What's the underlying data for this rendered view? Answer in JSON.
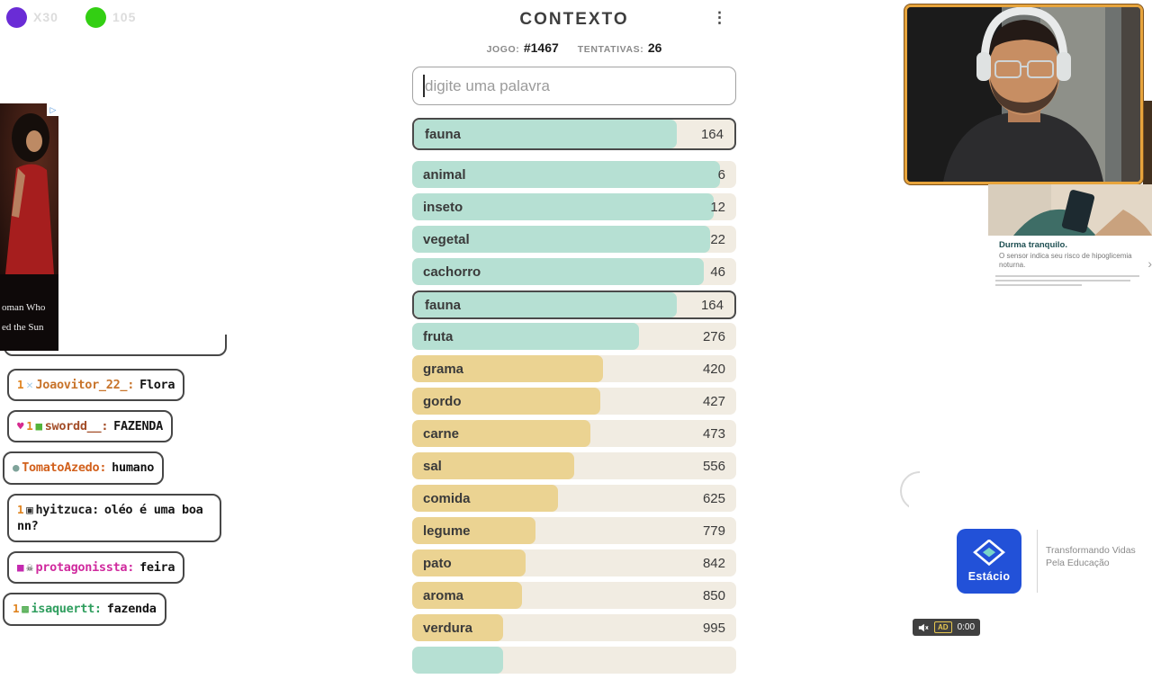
{
  "colors": {
    "teal_bar": "#b6e0d3",
    "yellow_bar": "#ebd392",
    "row_bg": "#f1ece2"
  },
  "stream_counters": [
    {
      "icon": "purple-circle",
      "value": "X30",
      "color": "#6a2cd6"
    },
    {
      "icon": "green-circle",
      "value": "105",
      "color": "#33cf13"
    }
  ],
  "game": {
    "title": "CONTEXTO",
    "menu_icon": "⋮",
    "jogo_label": "JOGO:",
    "jogo_value": "#1467",
    "tentativas_label": "TENTATIVAS:",
    "tentativas_value": "26",
    "input_placeholder": "digite uma palavra",
    "current_guess": {
      "word": "fauna",
      "rank": "164",
      "fill": 82,
      "tone": "teal",
      "pinned": true
    },
    "guesses": [
      {
        "word": "animal",
        "rank": "6",
        "fill": 95,
        "tone": "teal",
        "pinned": false
      },
      {
        "word": "inseto",
        "rank": "12",
        "fill": 93,
        "tone": "teal",
        "pinned": false
      },
      {
        "word": "vegetal",
        "rank": "22",
        "fill": 92,
        "tone": "teal",
        "pinned": false
      },
      {
        "word": "cachorro",
        "rank": "46",
        "fill": 90,
        "tone": "teal",
        "pinned": false
      },
      {
        "word": "fauna",
        "rank": "164",
        "fill": 82,
        "tone": "teal",
        "pinned": true
      },
      {
        "word": "fruta",
        "rank": "276",
        "fill": 70,
        "tone": "teal",
        "pinned": false
      },
      {
        "word": "grama",
        "rank": "420",
        "fill": 59,
        "tone": "yellow",
        "pinned": false
      },
      {
        "word": "gordo",
        "rank": "427",
        "fill": 58,
        "tone": "yellow",
        "pinned": false
      },
      {
        "word": "carne",
        "rank": "473",
        "fill": 55,
        "tone": "yellow",
        "pinned": false
      },
      {
        "word": "sal",
        "rank": "556",
        "fill": 50,
        "tone": "yellow",
        "pinned": false
      },
      {
        "word": "comida",
        "rank": "625",
        "fill": 45,
        "tone": "yellow",
        "pinned": false
      },
      {
        "word": "legume",
        "rank": "779",
        "fill": 38,
        "tone": "yellow",
        "pinned": false
      },
      {
        "word": "pato",
        "rank": "842",
        "fill": 35,
        "tone": "yellow",
        "pinned": false
      },
      {
        "word": "aroma",
        "rank": "850",
        "fill": 34,
        "tone": "yellow",
        "pinned": false
      },
      {
        "word": "verdura",
        "rank": "995",
        "fill": 28,
        "tone": "yellow",
        "pinned": false
      },
      {
        "word": "",
        "rank": "",
        "fill": 28,
        "tone": "teal",
        "pinned": false
      }
    ]
  },
  "chat": {
    "messages": [
      {
        "badges": [
          {
            "glyph": "1",
            "color": "#df831e"
          },
          {
            "glyph": "✕",
            "color": "#a5cce8"
          }
        ],
        "username": "Joaovitor_22_:",
        "name_color": "#c8742b",
        "text": "Flora",
        "shift": false
      },
      {
        "badges": [
          {
            "glyph": "♥",
            "color": "#d62a8f"
          },
          {
            "glyph": "1",
            "color": "#df831e"
          },
          {
            "glyph": "■",
            "color": "#53b43a"
          }
        ],
        "username": "swordd__:",
        "name_color": "#a34d28",
        "text": "FAZENDA",
        "shift": false
      },
      {
        "badges": [
          {
            "glyph": "●",
            "color": "#7fa39a"
          }
        ],
        "username": "TomatoAzedo:",
        "name_color": "#d2611d",
        "text": "humano",
        "shift": true
      },
      {
        "badges": [
          {
            "glyph": "1",
            "color": "#df831e"
          },
          {
            "glyph": "▣",
            "color": "#2b2b2b"
          }
        ],
        "username": "hyitzuca:",
        "name_color": "#1c1c1c",
        "text": "oléo é uma boa nn?",
        "shift": false
      },
      {
        "badges": [
          {
            "glyph": "■",
            "color": "#c42ab0"
          },
          {
            "glyph": "☠",
            "color": "#2b2b2b"
          }
        ],
        "username": "protagonissta:",
        "name_color": "#d02a9e",
        "text": "feira",
        "shift": false
      },
      {
        "badges": [
          {
            "glyph": "1",
            "color": "#df831e"
          },
          {
            "glyph": "▩",
            "color": "#3da33d"
          }
        ],
        "username": "isaquertt:",
        "name_color": "#2f9e5e",
        "text": "fazenda",
        "shift": true
      }
    ]
  },
  "left_ad": {
    "title_line1": "oman Who",
    "title_line2": "ed the Sun",
    "adchoices_icon": "▷"
  },
  "right_ad": {
    "headline": "Durma tranquilo.",
    "body": "O sensor indica seu risco de hipoglicemia noturna.",
    "chevron": "›"
  },
  "estacio_ad": {
    "brand": "Estácio",
    "tagline": "Transformando Vidas Pela Educação",
    "ad_badge": "AD",
    "time": "0:00"
  }
}
